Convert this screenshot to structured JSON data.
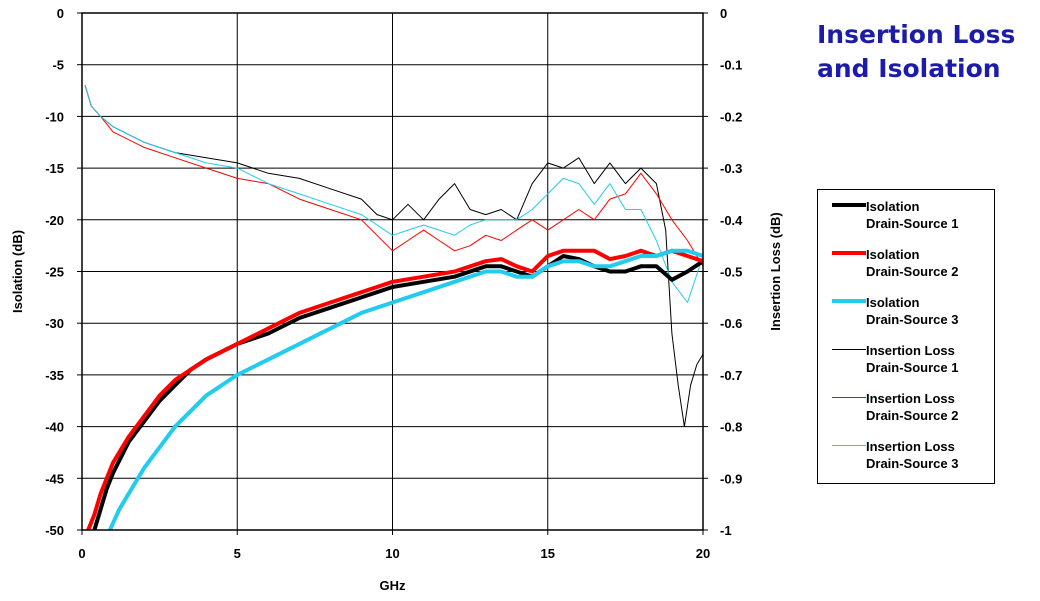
{
  "title_line1": "Insertion Loss",
  "title_line2": "and Isolation",
  "title_color": "#1C1CA8",
  "legend": [
    {
      "line1": "Isolation",
      "line2": "Drain-Source 1",
      "color": "#000000",
      "weight": "thick"
    },
    {
      "line1": "Isolation",
      "line2": "Drain-Source 2",
      "color": "#FF0000",
      "weight": "thick"
    },
    {
      "line1": "Isolation",
      "line2": "Drain-Source 3",
      "color": "#22CCEE",
      "weight": "thick"
    },
    {
      "line1": "Insertion Loss",
      "line2": "Drain-Source 1",
      "color": "#000000",
      "weight": "thin"
    },
    {
      "line1": "Insertion Loss",
      "line2": "Drain-Source 2",
      "color": "#FF0000",
      "weight": "thin"
    },
    {
      "line1": "Insertion Loss",
      "line2": "Drain-Source 3",
      "color": "#22CCEE",
      "weight": "thin"
    }
  ],
  "chart_data": {
    "type": "line",
    "xlabel": "GHz",
    "ylabel_left": "Isolation (dB)",
    "ylabel_right": "Insertion Loss (dB)",
    "xlim": [
      0,
      20
    ],
    "ylim_left": [
      -50,
      0
    ],
    "ylim_right": [
      -1,
      0
    ],
    "x_ticks": [
      "0",
      "5",
      "10",
      "15",
      "20"
    ],
    "y_ticks_left": [
      "0",
      "-5",
      "-10",
      "-15",
      "-20",
      "-25",
      "-30",
      "-35",
      "-40",
      "-45",
      "-50"
    ],
    "y_ticks_right": [
      "0",
      "-0.1",
      "-0.2",
      "-0.3",
      "-0.4",
      "-0.5",
      "-0.6",
      "-0.7",
      "-0.8",
      "-0.9",
      "-1"
    ],
    "grid": true,
    "legend_position": "right",
    "series": [
      {
        "name": "Isolation Drain-Source 1",
        "axis": "left",
        "color": "#000000",
        "weight": "thick",
        "x": [
          0.4,
          0.6,
          0.8,
          1.0,
          1.5,
          2,
          2.5,
          3,
          3.5,
          4,
          5,
          6,
          7,
          8,
          9,
          10,
          11,
          12,
          13,
          13.5,
          14,
          14.5,
          15,
          15.5,
          16,
          16.5,
          17,
          17.5,
          18,
          18.5,
          19,
          19.5,
          20
        ],
        "y": [
          -50,
          -48,
          -46,
          -44.5,
          -41.5,
          -39.5,
          -37.5,
          -36,
          -34.5,
          -33.5,
          -32,
          -31,
          -29.5,
          -28.5,
          -27.5,
          -26.5,
          -26,
          -25.5,
          -24.5,
          -24.5,
          -25,
          -25.5,
          -24.5,
          -23.5,
          -23.8,
          -24.5,
          -25,
          -25,
          -24.5,
          -24.5,
          -25.8,
          -25,
          -24
        ]
      },
      {
        "name": "Isolation Drain-Source 2",
        "axis": "left",
        "color": "#FF0000",
        "weight": "thick",
        "x": [
          0.2,
          0.4,
          0.6,
          0.8,
          1.0,
          1.5,
          2,
          2.5,
          3,
          3.5,
          4,
          5,
          6,
          7,
          8,
          9,
          10,
          11,
          12,
          13,
          13.5,
          14,
          14.5,
          15,
          15.5,
          16,
          16.5,
          17,
          17.5,
          18,
          18.5,
          19,
          19.5,
          20
        ],
        "y": [
          -50,
          -48.5,
          -46.5,
          -45,
          -43.5,
          -41,
          -39,
          -37,
          -35.5,
          -34.5,
          -33.5,
          -32,
          -30.5,
          -29,
          -28,
          -27,
          -26,
          -25.5,
          -25,
          -24,
          -23.8,
          -24.5,
          -25,
          -23.5,
          -23,
          -23,
          -23,
          -23.8,
          -23.5,
          -23,
          -23.5,
          -23,
          -23.5,
          -24
        ]
      },
      {
        "name": "Isolation Drain-Source 3",
        "axis": "left",
        "color": "#22CCEE",
        "weight": "thick",
        "x": [
          0.9,
          1.2,
          1.5,
          2,
          2.5,
          3,
          3.5,
          4,
          5,
          6,
          7,
          8,
          9,
          10,
          11,
          12,
          13,
          13.5,
          14,
          14.5,
          15,
          15.5,
          16,
          16.5,
          17,
          17.5,
          18,
          18.5,
          19,
          19.5,
          20
        ],
        "y": [
          -50,
          -48,
          -46.5,
          -44,
          -42,
          -40,
          -38.5,
          -37,
          -35,
          -33.5,
          -32,
          -30.5,
          -29,
          -28,
          -27,
          -26,
          -25,
          -25,
          -25.5,
          -25.5,
          -24.5,
          -24,
          -24,
          -24.5,
          -24.5,
          -24,
          -23.5,
          -23.5,
          -23,
          -23,
          -23.5
        ]
      },
      {
        "name": "Insertion Loss Drain-Source 1",
        "axis": "right",
        "color": "#000000",
        "weight": "thin",
        "x": [
          0.1,
          0.3,
          0.6,
          1,
          2,
          3,
          4,
          5,
          6,
          7,
          8,
          9,
          9.5,
          10,
          10.5,
          11,
          11.5,
          12,
          12.5,
          13,
          13.5,
          14,
          14.5,
          15,
          15.5,
          16,
          16.5,
          17,
          17.5,
          18,
          18.5,
          18.8,
          19.0,
          19.2,
          19.4,
          19.6,
          19.8,
          20
        ],
        "y": [
          -0.14,
          -0.18,
          -0.2,
          -0.22,
          -0.25,
          -0.27,
          -0.28,
          -0.29,
          -0.31,
          -0.32,
          -0.34,
          -0.36,
          -0.39,
          -0.4,
          -0.37,
          -0.4,
          -0.36,
          -0.33,
          -0.38,
          -0.39,
          -0.38,
          -0.4,
          -0.33,
          -0.29,
          -0.3,
          -0.28,
          -0.33,
          -0.29,
          -0.33,
          -0.3,
          -0.33,
          -0.42,
          -0.62,
          -0.72,
          -0.8,
          -0.72,
          -0.68,
          -0.66
        ]
      },
      {
        "name": "Insertion Loss Drain-Source 2",
        "axis": "right",
        "color": "#FF0000",
        "weight": "thin",
        "x": [
          0.1,
          0.3,
          0.6,
          1,
          2,
          3,
          4,
          5,
          6,
          7,
          8,
          9,
          9.5,
          10,
          10.5,
          11,
          11.5,
          12,
          12.5,
          13,
          13.5,
          14,
          14.5,
          15,
          15.5,
          16,
          16.5,
          17,
          17.5,
          18,
          18.5,
          19,
          19.5,
          20
        ],
        "y": [
          -0.14,
          -0.18,
          -0.2,
          -0.23,
          -0.26,
          -0.28,
          -0.3,
          -0.32,
          -0.33,
          -0.36,
          -0.38,
          -0.4,
          -0.43,
          -0.46,
          -0.44,
          -0.42,
          -0.44,
          -0.46,
          -0.45,
          -0.43,
          -0.44,
          -0.42,
          -0.4,
          -0.42,
          -0.4,
          -0.38,
          -0.4,
          -0.36,
          -0.35,
          -0.31,
          -0.35,
          -0.4,
          -0.44,
          -0.49
        ]
      },
      {
        "name": "Insertion Loss Drain-Source 3",
        "axis": "right",
        "color": "#22CCEE",
        "weight": "thin",
        "x": [
          0.1,
          0.3,
          0.6,
          1,
          2,
          3,
          4,
          5,
          6,
          7,
          8,
          9,
          9.5,
          10,
          10.5,
          11,
          11.5,
          12,
          12.5,
          13,
          13.5,
          14,
          14.5,
          15,
          15.5,
          16,
          16.5,
          17,
          17.5,
          18,
          18.5,
          19,
          19.5,
          20
        ],
        "y": [
          -0.14,
          -0.18,
          -0.2,
          -0.22,
          -0.25,
          -0.27,
          -0.29,
          -0.3,
          -0.33,
          -0.35,
          -0.37,
          -0.39,
          -0.41,
          -0.43,
          -0.42,
          -0.41,
          -0.42,
          -0.43,
          -0.41,
          -0.4,
          -0.4,
          -0.4,
          -0.38,
          -0.35,
          -0.32,
          -0.33,
          -0.37,
          -0.33,
          -0.38,
          -0.38,
          -0.44,
          -0.52,
          -0.56,
          -0.47
        ]
      }
    ]
  }
}
